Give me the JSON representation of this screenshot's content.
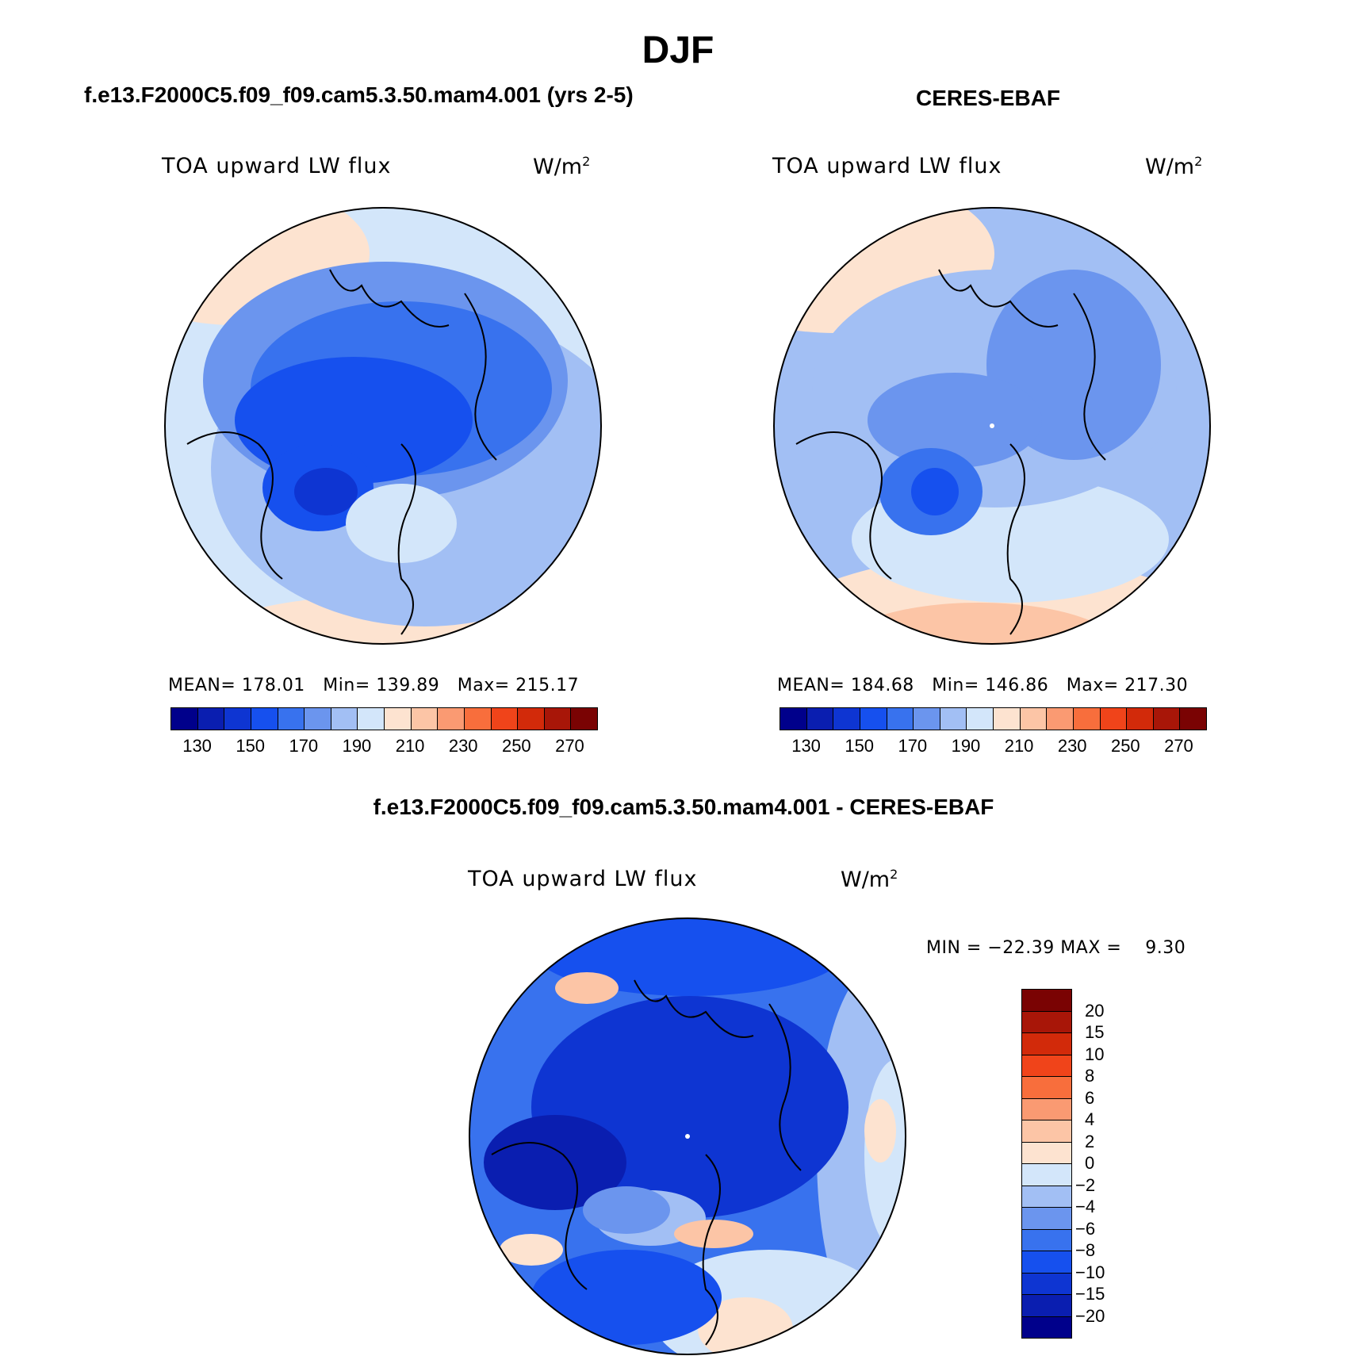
{
  "title": "DJF",
  "chart_data": [
    {
      "type": "heatmap",
      "projection": "north-polar-stereographic",
      "title": "f.e13.F2000C5.f09_f09.cam5.3.50.mam4.001 (yrs 2-5)",
      "variable": "TOA upward LW flux",
      "units_base": "W/m",
      "units_exp": "2",
      "stats": {
        "mean_label": "MEAN=",
        "mean": "178.01",
        "min_label": "Min=",
        "min": "139.89",
        "max_label": "Max=",
        "max": "215.17"
      },
      "colorbar": {
        "orientation": "horizontal",
        "levels": [
          130,
          140,
          150,
          160,
          170,
          180,
          190,
          200,
          210,
          220,
          230,
          240,
          250,
          260,
          270
        ],
        "labels": [
          "130",
          "150",
          "170",
          "190",
          "210",
          "230",
          "250",
          "270"
        ],
        "colors": [
          "#00008b",
          "#0a1eb0",
          "#0e35d2",
          "#1650ee",
          "#3872ee",
          "#6b95ee",
          "#a2bff4",
          "#d3e6fa",
          "#fde3d0",
          "#fcc5a6",
          "#fa9a72",
          "#f86e3c",
          "#f0441a",
          "#d22a0a",
          "#a81608",
          "#7a0303"
        ]
      }
    },
    {
      "type": "heatmap",
      "projection": "north-polar-stereographic",
      "title": "CERES-EBAF",
      "variable": "TOA upward LW flux",
      "units_base": "W/m",
      "units_exp": "2",
      "stats": {
        "mean_label": "MEAN=",
        "mean": "184.68",
        "min_label": "Min=",
        "min": "146.86",
        "max_label": "Max=",
        "max": "217.30"
      },
      "colorbar": {
        "orientation": "horizontal",
        "levels": [
          130,
          140,
          150,
          160,
          170,
          180,
          190,
          200,
          210,
          220,
          230,
          240,
          250,
          260,
          270
        ],
        "labels": [
          "130",
          "150",
          "170",
          "190",
          "210",
          "230",
          "250",
          "270"
        ],
        "colors": [
          "#00008b",
          "#0a1eb0",
          "#0e35d2",
          "#1650ee",
          "#3872ee",
          "#6b95ee",
          "#a2bff4",
          "#d3e6fa",
          "#fde3d0",
          "#fcc5a6",
          "#fa9a72",
          "#f86e3c",
          "#f0441a",
          "#d22a0a",
          "#a81608",
          "#7a0303"
        ]
      }
    },
    {
      "type": "heatmap",
      "projection": "north-polar-stereographic",
      "title": "f.e13.F2000C5.f09_f09.cam5.3.50.mam4.001 - CERES-EBAF",
      "variable": "TOA upward LW flux",
      "units_base": "W/m",
      "units_exp": "2",
      "stats": {
        "min_label": "MIN =",
        "min": "−22.39",
        "max_label": "MAX =",
        "max": "9.30"
      },
      "colorbar": {
        "orientation": "vertical",
        "labels": [
          "20",
          "15",
          "10",
          "8",
          "6",
          "4",
          "2",
          "0",
          "−2",
          "−4",
          "−6",
          "−8",
          "−10",
          "−15",
          "−20"
        ],
        "colors": [
          "#7a0303",
          "#a81608",
          "#d22a0a",
          "#f0441a",
          "#f86e3c",
          "#fa9a72",
          "#fcc5a6",
          "#fde3d0",
          "#d3e6fa",
          "#a2bff4",
          "#6b95ee",
          "#3872ee",
          "#1650ee",
          "#0e35d2",
          "#0a1eb0",
          "#00008b"
        ]
      }
    }
  ]
}
